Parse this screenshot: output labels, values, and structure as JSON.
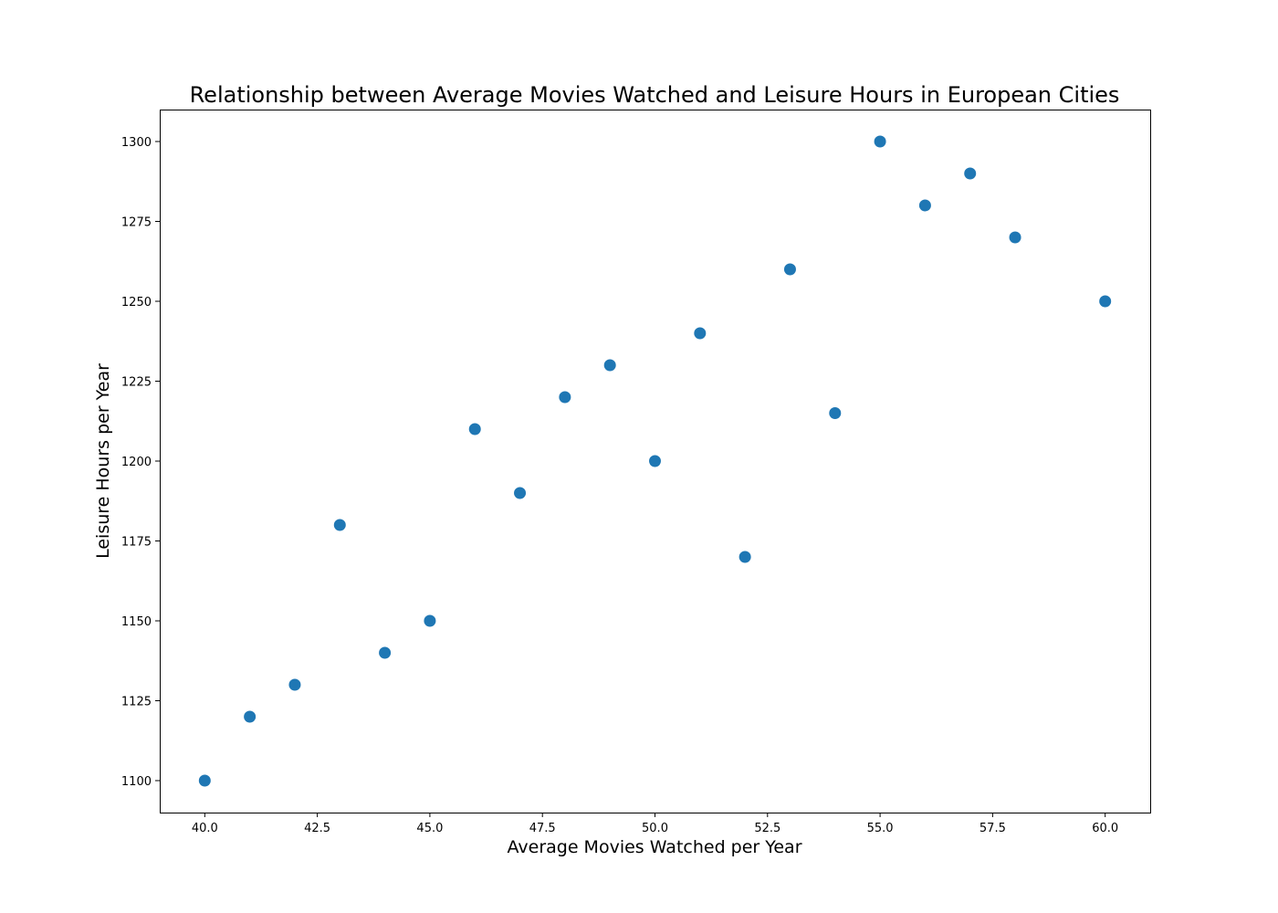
{
  "chart_data": {
    "type": "scatter",
    "title": "Relationship between Average Movies Watched and Leisure Hours in European Cities",
    "xlabel": "Average Movies Watched per Year",
    "ylabel": "Leisure Hours per Year",
    "xlim": [
      39.0,
      61.0
    ],
    "ylim": [
      1090,
      1310
    ],
    "xticks": [
      "40.0",
      "42.5",
      "45.0",
      "47.5",
      "50.0",
      "52.5",
      "55.0",
      "57.5",
      "60.0"
    ],
    "yticks": [
      "1100",
      "1125",
      "1150",
      "1175",
      "1200",
      "1225",
      "1250",
      "1275",
      "1300"
    ],
    "grid": false,
    "marker_color": "#1f77b4",
    "points": [
      {
        "x": 40,
        "y": 1100
      },
      {
        "x": 41,
        "y": 1120
      },
      {
        "x": 42,
        "y": 1130
      },
      {
        "x": 43,
        "y": 1180
      },
      {
        "x": 44,
        "y": 1140
      },
      {
        "x": 45,
        "y": 1150
      },
      {
        "x": 46,
        "y": 1210
      },
      {
        "x": 47,
        "y": 1190
      },
      {
        "x": 48,
        "y": 1220
      },
      {
        "x": 49,
        "y": 1230
      },
      {
        "x": 50,
        "y": 1200
      },
      {
        "x": 51,
        "y": 1240
      },
      {
        "x": 52,
        "y": 1170
      },
      {
        "x": 53,
        "y": 1260
      },
      {
        "x": 54,
        "y": 1215
      },
      {
        "x": 55,
        "y": 1300
      },
      {
        "x": 56,
        "y": 1280
      },
      {
        "x": 57,
        "y": 1290
      },
      {
        "x": 58,
        "y": 1270
      },
      {
        "x": 60,
        "y": 1250
      }
    ]
  }
}
